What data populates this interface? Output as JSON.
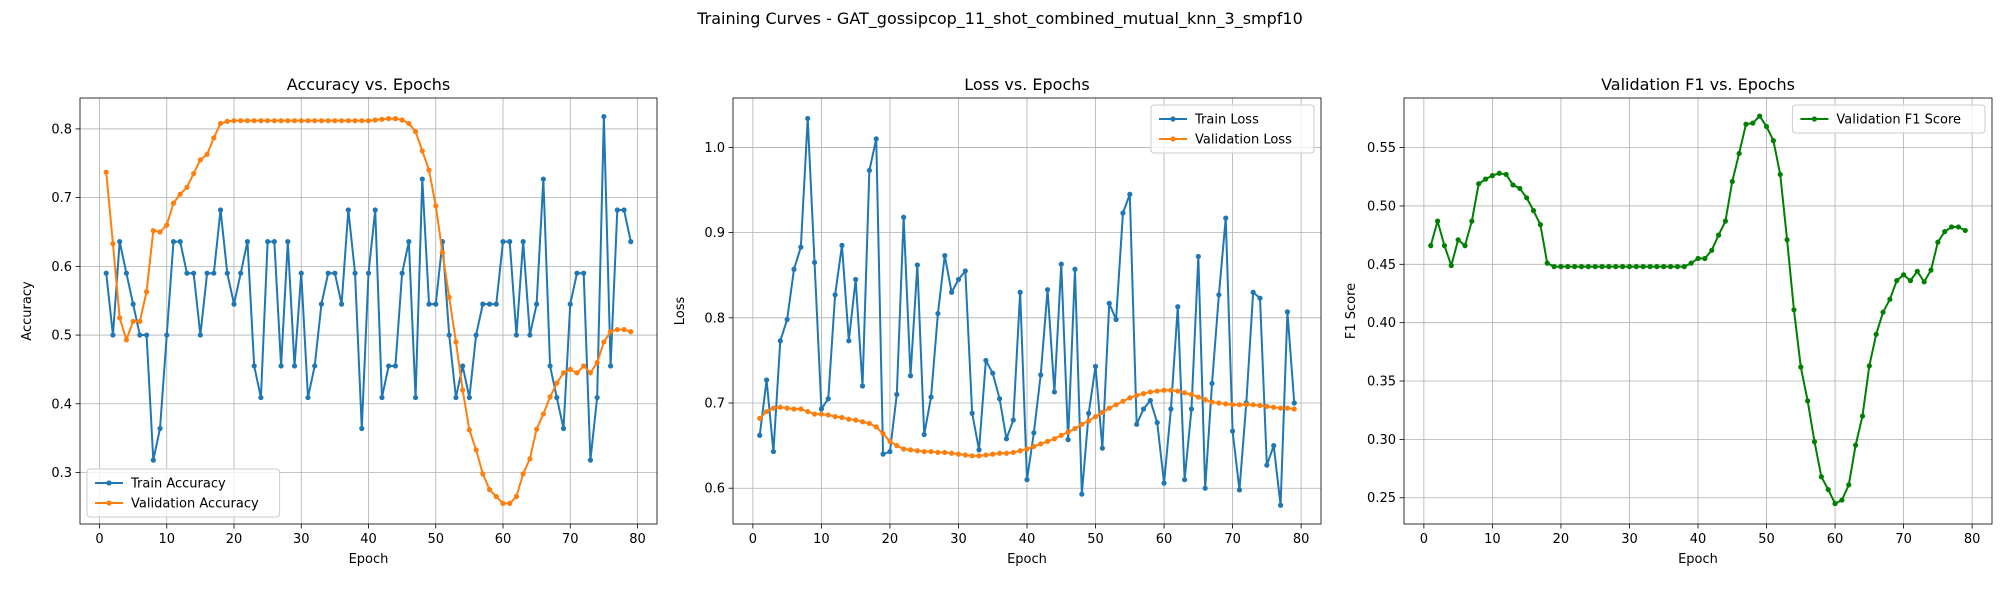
{
  "suptitle": "Training Curves - GAT_gossipcop_11_shot_combined_mutual_knn_3_smpf10",
  "chart_data": [
    {
      "type": "line",
      "title": "Accuracy vs. Epochs",
      "xlabel": "Epoch",
      "ylabel": "Accuracy",
      "xlim": [
        -2.9,
        82.9
      ],
      "ylim": [
        0.225,
        0.845
      ],
      "xticks": [
        0,
        10,
        20,
        30,
        40,
        50,
        60,
        70,
        80
      ],
      "yticks": [
        0.3,
        0.4,
        0.5,
        0.6,
        0.7,
        0.8
      ],
      "ytick_labels": [
        "0.3",
        "0.4",
        "0.5",
        "0.6",
        "0.7",
        "0.8"
      ],
      "grid": true,
      "legend": "lower-left",
      "x_start": 1,
      "series": [
        {
          "name": "Train Accuracy",
          "color": "#1f77b4",
          "values": [
            0.59,
            0.5,
            0.636,
            0.59,
            0.545,
            0.5,
            0.5,
            0.318,
            0.364,
            0.5,
            0.636,
            0.636,
            0.59,
            0.59,
            0.5,
            0.59,
            0.59,
            0.682,
            0.59,
            0.545,
            0.59,
            0.636,
            0.455,
            0.409,
            0.636,
            0.636,
            0.455,
            0.636,
            0.455,
            0.59,
            0.409,
            0.455,
            0.545,
            0.59,
            0.59,
            0.545,
            0.682,
            0.59,
            0.364,
            0.59,
            0.682,
            0.409,
            0.455,
            0.455,
            0.59,
            0.636,
            0.409,
            0.727,
            0.545,
            0.545,
            0.636,
            0.5,
            0.409,
            0.455,
            0.409,
            0.5,
            0.545,
            0.545,
            0.545,
            0.636,
            0.636,
            0.5,
            0.636,
            0.5,
            0.545,
            0.727,
            0.455,
            0.409,
            0.364,
            0.545,
            0.59,
            0.59,
            0.318,
            0.409,
            0.818,
            0.455,
            0.682,
            0.682,
            0.636
          ]
        },
        {
          "name": "Validation Accuracy",
          "color": "#ff7f0e",
          "values": [
            0.737,
            0.633,
            0.525,
            0.493,
            0.52,
            0.52,
            0.563,
            0.652,
            0.65,
            0.66,
            0.692,
            0.705,
            0.715,
            0.735,
            0.755,
            0.763,
            0.787,
            0.808,
            0.811,
            0.812,
            0.812,
            0.812,
            0.812,
            0.812,
            0.812,
            0.812,
            0.812,
            0.812,
            0.812,
            0.812,
            0.812,
            0.812,
            0.812,
            0.812,
            0.812,
            0.812,
            0.812,
            0.812,
            0.812,
            0.812,
            0.813,
            0.814,
            0.815,
            0.815,
            0.813,
            0.808,
            0.796,
            0.768,
            0.74,
            0.688,
            0.62,
            0.555,
            0.49,
            0.42,
            0.362,
            0.333,
            0.298,
            0.275,
            0.265,
            0.255,
            0.255,
            0.265,
            0.298,
            0.32,
            0.363,
            0.385,
            0.41,
            0.43,
            0.445,
            0.45,
            0.445,
            0.455,
            0.445,
            0.46,
            0.49,
            0.505,
            0.508,
            0.508,
            0.505
          ]
        }
      ]
    },
    {
      "type": "line",
      "title": "Loss vs. Epochs",
      "xlabel": "Epoch",
      "ylabel": "Loss",
      "xlim": [
        -2.9,
        82.9
      ],
      "ylim": [
        0.558,
        1.058
      ],
      "xticks": [
        0,
        10,
        20,
        30,
        40,
        50,
        60,
        70,
        80
      ],
      "yticks": [
        0.6,
        0.7,
        0.8,
        0.9,
        1.0
      ],
      "ytick_labels": [
        "0.6",
        "0.7",
        "0.8",
        "0.9",
        "1.0"
      ],
      "grid": true,
      "legend": "upper-right",
      "x_start": 1,
      "series": [
        {
          "name": "Train Loss",
          "color": "#1f77b4",
          "values": [
            0.662,
            0.727,
            0.643,
            0.773,
            0.798,
            0.857,
            0.883,
            1.034,
            0.865,
            0.693,
            0.705,
            0.827,
            0.885,
            0.773,
            0.845,
            0.72,
            0.973,
            1.01,
            0.64,
            0.643,
            0.71,
            0.918,
            0.732,
            0.862,
            0.663,
            0.707,
            0.805,
            0.873,
            0.83,
            0.845,
            0.855,
            0.688,
            0.645,
            0.75,
            0.735,
            0.705,
            0.658,
            0.68,
            0.83,
            0.61,
            0.665,
            0.733,
            0.833,
            0.713,
            0.863,
            0.657,
            0.857,
            0.593,
            0.688,
            0.743,
            0.647,
            0.817,
            0.798,
            0.923,
            0.945,
            0.675,
            0.693,
            0.703,
            0.677,
            0.606,
            0.693,
            0.813,
            0.61,
            0.693,
            0.872,
            0.6,
            0.723,
            0.827,
            0.917,
            0.667,
            0.598,
            0.7,
            0.83,
            0.823,
            0.627,
            0.65,
            0.58,
            0.807,
            0.7
          ]
        },
        {
          "name": "Validation Loss",
          "color": "#ff7f0e",
          "values": [
            0.682,
            0.69,
            0.694,
            0.695,
            0.694,
            0.693,
            0.693,
            0.69,
            0.687,
            0.687,
            0.686,
            0.684,
            0.683,
            0.681,
            0.68,
            0.678,
            0.676,
            0.672,
            0.664,
            0.655,
            0.65,
            0.646,
            0.645,
            0.644,
            0.643,
            0.643,
            0.642,
            0.642,
            0.641,
            0.64,
            0.639,
            0.638,
            0.638,
            0.639,
            0.64,
            0.641,
            0.641,
            0.642,
            0.644,
            0.646,
            0.649,
            0.652,
            0.655,
            0.658,
            0.662,
            0.666,
            0.67,
            0.675,
            0.679,
            0.684,
            0.689,
            0.694,
            0.698,
            0.702,
            0.706,
            0.709,
            0.711,
            0.713,
            0.714,
            0.715,
            0.715,
            0.714,
            0.712,
            0.71,
            0.707,
            0.704,
            0.701,
            0.7,
            0.699,
            0.698,
            0.698,
            0.698,
            0.698,
            0.697,
            0.696,
            0.695,
            0.694,
            0.694,
            0.693
          ]
        }
      ]
    },
    {
      "type": "line",
      "title": "Validation F1 vs. Epochs",
      "xlabel": "Epoch",
      "ylabel": "F1 Score",
      "xlim": [
        -2.9,
        82.9
      ],
      "ylim": [
        0.2275,
        0.5925
      ],
      "xticks": [
        0,
        10,
        20,
        30,
        40,
        50,
        60,
        70,
        80
      ],
      "yticks": [
        0.25,
        0.3,
        0.35,
        0.4,
        0.45,
        0.5,
        0.55
      ],
      "ytick_labels": [
        "0.25",
        "0.30",
        "0.35",
        "0.40",
        "0.45",
        "0.50",
        "0.55"
      ],
      "grid": true,
      "legend": "upper-right",
      "x_start": 1,
      "series": [
        {
          "name": "Validation F1 Score",
          "color": "#008000",
          "values": [
            0.466,
            0.487,
            0.466,
            0.449,
            0.471,
            0.466,
            0.487,
            0.519,
            0.523,
            0.526,
            0.528,
            0.527,
            0.518,
            0.515,
            0.507,
            0.496,
            0.484,
            0.451,
            0.448,
            0.448,
            0.448,
            0.448,
            0.448,
            0.448,
            0.448,
            0.448,
            0.448,
            0.448,
            0.448,
            0.448,
            0.448,
            0.448,
            0.448,
            0.448,
            0.448,
            0.448,
            0.448,
            0.448,
            0.451,
            0.455,
            0.455,
            0.462,
            0.475,
            0.487,
            0.521,
            0.545,
            0.57,
            0.571,
            0.577,
            0.568,
            0.556,
            0.527,
            0.471,
            0.411,
            0.362,
            0.333,
            0.298,
            0.268,
            0.257,
            0.245,
            0.248,
            0.261,
            0.295,
            0.32,
            0.363,
            0.39,
            0.409,
            0.42,
            0.436,
            0.441,
            0.436,
            0.444,
            0.435,
            0.445,
            0.469,
            0.478,
            0.482,
            0.482,
            0.479
          ]
        }
      ]
    }
  ]
}
